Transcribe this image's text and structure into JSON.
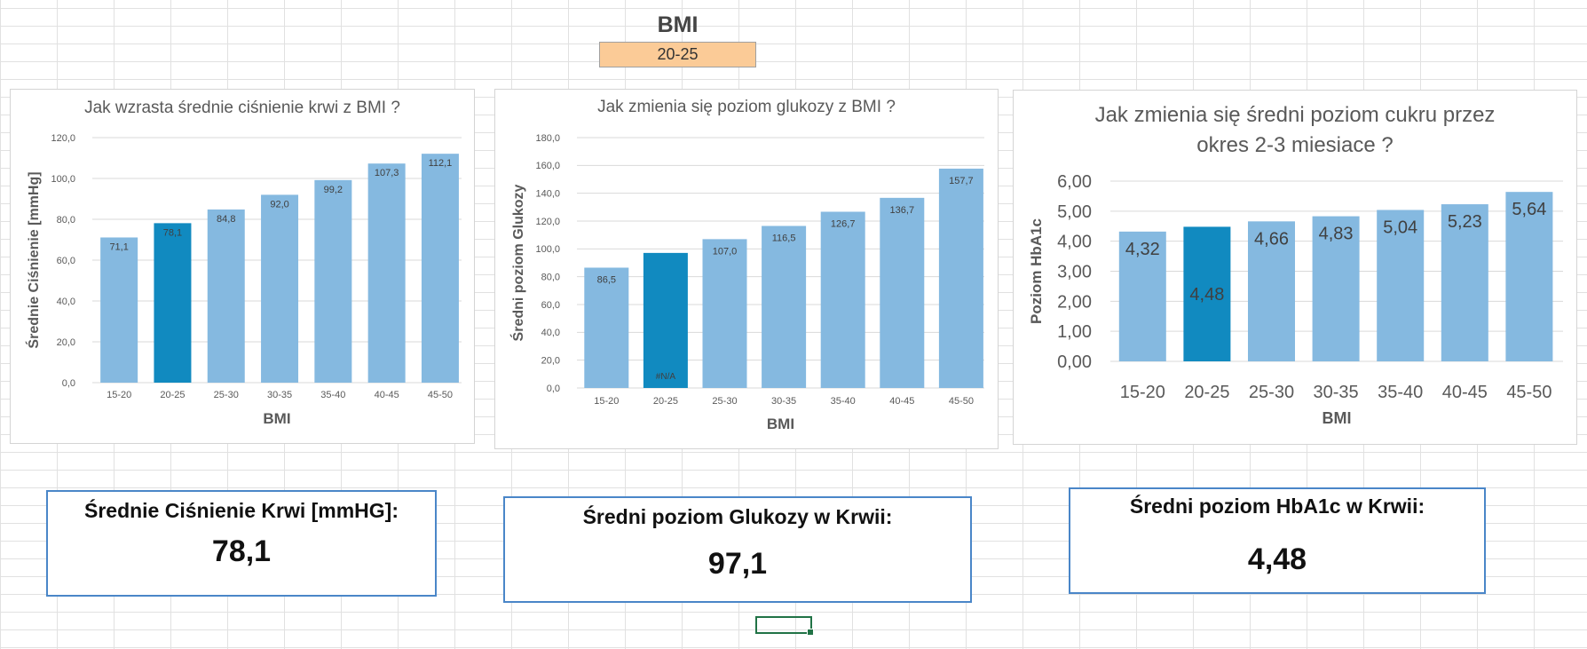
{
  "selector": {
    "header": "BMI",
    "value": "20-25"
  },
  "colors": {
    "bar": "#85b9e0",
    "highlight": "#118ac0",
    "grid": "#d9d9d9",
    "text": "#595959",
    "selector_fill": "#fbcb97",
    "kpi_border": "#4a86c8"
  },
  "chart_data": [
    {
      "type": "bar",
      "title": [
        "Jak  wzrasta średnie ciśnienie krwi z BMI ?"
      ],
      "xlabel": "BMI",
      "ylabel": "Średnie Ciśnienie [mmHg]",
      "categories": [
        "15-20",
        "20-25",
        "25-30",
        "30-35",
        "35-40",
        "40-45",
        "45-50"
      ],
      "values": [
        71.1,
        78.1,
        84.8,
        92.0,
        99.2,
        107.3,
        112.1
      ],
      "labels": [
        "71,1",
        "78,1",
        "84,8",
        "92,0",
        "99,2",
        "107,3",
        "112,1"
      ],
      "highlight": "20-25",
      "ylim": [
        0,
        120
      ],
      "yticks": [
        "0,0",
        "20,0",
        "40,0",
        "60,0",
        "80,0",
        "100,0",
        "120,0"
      ],
      "grid": true
    },
    {
      "type": "bar",
      "title": [
        "Jak zmienia się poziom glukozy z BMI  ?"
      ],
      "xlabel": "BMI",
      "ylabel": "Średni poziom Glukozy",
      "categories": [
        "15-20",
        "20-25",
        "25-30",
        "30-35",
        "35-40",
        "40-45",
        "45-50"
      ],
      "values": [
        86.5,
        97.1,
        107.0,
        116.5,
        126.7,
        136.7,
        157.7
      ],
      "labels": [
        "86,5",
        "#N/A",
        "107,0",
        "116,5",
        "126,7",
        "136,7",
        "157,7"
      ],
      "highlight": "20-25",
      "ylim": [
        0,
        180
      ],
      "yticks": [
        "0,0",
        "20,0",
        "40,0",
        "60,0",
        "80,0",
        "100,0",
        "120,0",
        "140,0",
        "160,0",
        "180,0"
      ],
      "grid": true
    },
    {
      "type": "bar",
      "title": [
        "Jak zmienia się średni poziom cukru  przez",
        "okres 2-3 miesiace ?"
      ],
      "xlabel": "BMI",
      "ylabel": "Poziom HbA1c",
      "categories": [
        "15-20",
        "20-25",
        "25-30",
        "30-35",
        "35-40",
        "40-45",
        "45-50"
      ],
      "values": [
        4.32,
        4.48,
        4.66,
        4.83,
        5.04,
        5.23,
        5.64
      ],
      "labels": [
        "4,32",
        "4,48",
        "4,66",
        "4,83",
        "5,04",
        "5,23",
        "5,64"
      ],
      "highlight": "20-25",
      "ylim": [
        0,
        6
      ],
      "yticks": [
        "0,00",
        "1,00",
        "2,00",
        "3,00",
        "4,00",
        "5,00",
        "6,00"
      ],
      "grid": true
    }
  ],
  "kpis": [
    {
      "label": "Średnie Ciśnienie Krwi [mmHG]:",
      "value": "78,1"
    },
    {
      "label": "Średni poziom Glukozy w Krwii:",
      "value": "97,1"
    },
    {
      "label": "Średni poziom HbA1c w Krwii:",
      "value": "4,48"
    }
  ]
}
